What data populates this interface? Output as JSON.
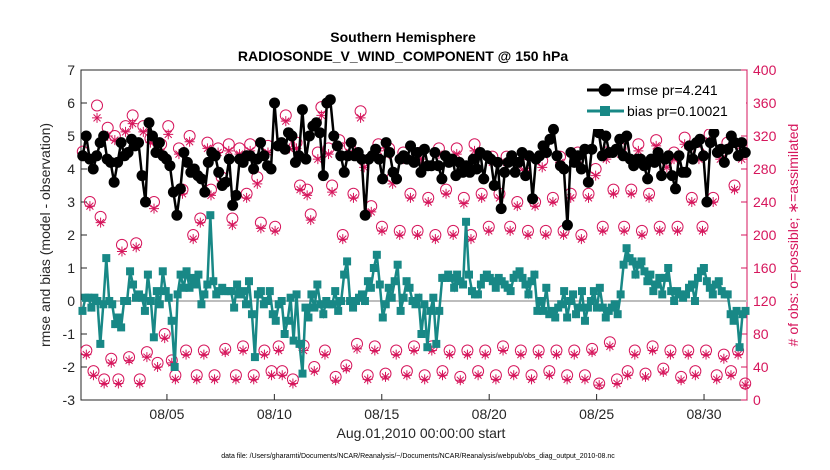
{
  "chart_data": {
    "type": "line",
    "title": "Southern Hemisphere",
    "subtitle": "RADIOSONDE_V_WIND_COMPONENT @ 150 hPa",
    "xlabel": "Aug.01,2010 00:00:00 start",
    "ylabel": "rmse and bias (model - observation)",
    "y2label": "# of obs: o=possible; ∗=assimilated",
    "footnote": "data file: /Users/gharamti/Documents/NCAR/Reanalysis/~/Documents/NCAR/Reanalysis/webpub/obs_diag_output_2010-08.nc",
    "xlim": [
      1,
      32
    ],
    "ylim": [
      -3,
      7
    ],
    "y2lim": [
      0,
      400
    ],
    "xticks": [
      5,
      10,
      15,
      20,
      25,
      30
    ],
    "xticklabels": [
      "08/05",
      "08/10",
      "08/15",
      "08/20",
      "08/25",
      "08/30"
    ],
    "yticks": [
      -3,
      -2,
      -1,
      0,
      1,
      2,
      3,
      4,
      5,
      6,
      7
    ],
    "y2ticks": [
      0,
      40,
      80,
      120,
      160,
      200,
      240,
      280,
      320,
      360,
      400
    ],
    "grid": false,
    "legend_position": "top-right",
    "series": [
      {
        "name": "rmse pr=4.241",
        "color": "#000000",
        "marker": "circle",
        "axis": "left",
        "y": [
          4.4,
          5.0,
          4.3,
          4.0,
          4.4,
          4.8,
          5.0,
          4.3,
          4.2,
          3.6,
          4.2,
          4.8,
          4.4,
          4.5,
          4.9,
          4.7,
          4.8,
          3.8,
          3.0,
          5.4,
          5.0,
          4.5,
          4.8,
          4.4,
          4.3,
          4.1,
          3.3,
          2.6,
          3.4,
          4.5,
          4.2,
          3.9,
          4.0,
          3.8,
          3.7,
          3.3,
          4.2,
          4.5,
          4.4,
          3.9,
          3.5,
          3.6,
          4.3,
          2.9,
          3.2,
          4.3,
          4.2,
          4.4,
          4.4,
          4.0,
          4.3,
          4.8,
          4.4,
          4.1,
          4.0,
          6.0,
          4.7,
          4.8,
          4.6,
          5.1,
          5.0,
          4.2,
          4.4,
          5.8,
          4.3,
          5.0,
          5.3,
          5.4,
          5.1,
          3.8,
          6.0,
          6.1,
          5.0,
          4.7,
          4.4,
          3.9,
          4.4,
          4.8,
          4.4,
          4.5,
          4.3,
          2.6,
          4.3,
          4.4,
          4.6,
          4.3,
          3.7,
          4.8,
          4.5,
          3.9,
          3.7,
          4.3,
          4.4,
          4.3,
          4.7,
          4.2,
          4.5,
          3.9,
          4.6,
          4.1,
          4.1,
          4.5,
          4.1,
          3.7,
          4.4,
          4.2,
          4.3,
          3.8,
          4.2,
          3.9,
          4.1,
          3.9,
          4.3,
          4.0,
          4.5,
          3.7,
          4.4,
          4.3,
          3.5,
          4.2,
          2.8,
          3.9,
          4.2,
          4.4,
          3.9,
          4.2,
          4.5,
          3.8,
          4.4,
          3.1,
          4.3,
          4.4,
          4.7,
          4.5,
          4.9,
          5.2,
          4.4,
          4.1,
          4.0,
          2.3,
          4.5,
          4.2,
          4.4,
          4.0,
          4.6,
          3.6,
          4.6,
          5.4,
          5.1,
          4.4,
          5.0,
          4.5,
          4.5,
          4.6,
          4.9,
          4.4,
          5.0,
          4.3,
          4.1,
          4.3,
          4.3,
          4.1,
          3.7,
          4.3,
          4.2,
          4.5,
          3.8,
          4.3,
          4.4,
          3.8,
          3.4,
          4.4,
          3.9,
          3.9,
          4.7,
          4.3,
          4.8,
          4.9,
          4.4,
          3.0,
          4.8,
          5.1,
          4.5,
          4.6,
          4.2,
          4.6,
          5.0,
          4.8,
          4.4,
          4.8,
          4.5
        ]
      },
      {
        "name": "bias pr=0.10021",
        "color": "#188886",
        "marker": "square",
        "axis": "left",
        "y": [
          -0.3,
          0.1,
          0.1,
          -0.2,
          0.1,
          0.0,
          -1.3,
          -0.1,
          1.3,
          0.0,
          -0.1,
          -0.7,
          -0.5,
          -0.8,
          0.0,
          0.0,
          0.9,
          0.5,
          0.1,
          0.2,
          0.1,
          -0.3,
          0.8,
          0.0,
          -1.1,
          0.3,
          -0.1,
          0.9,
          0.3,
          0.1,
          -0.6,
          -2.0,
          0.2,
          0.8,
          0.4,
          0.9,
          0.4,
          0.7,
          0.5,
          0.8,
          -0.1,
          0.2,
          0.5,
          2.6,
          0.6,
          0.2,
          0.3,
          0.4,
          0.3,
          0.3,
          0.3,
          -0.2,
          0.5,
          0.2,
          0.3,
          -0.1,
          0.6,
          -0.4,
          -1.7,
          0.2,
          0.3,
          -0.1,
          0.0,
          0.3,
          -0.4,
          -0.6,
          -0.1,
          0.0,
          -1.0,
          -0.6,
          0.1,
          -1.2,
          0.2,
          -1.3,
          -2.2,
          -0.2,
          -0.5,
          0.2,
          -0.2,
          0.5,
          -0.1,
          -0.4,
          0.0,
          -0.1,
          -0.1,
          0.3,
          -0.3,
          0.0,
          0.8,
          1.2,
          0.0,
          -0.2,
          0.0,
          0.1,
          0.2,
          0.0,
          0.6,
          0.4,
          1.0,
          1.4,
          0.5,
          -0.5,
          -0.1,
          0.4,
          0.1,
          0.6,
          1.1,
          -0.3,
          0.1,
          0.6,
          0.4,
          0.0,
          -0.1,
          0.1,
          -1.0,
          -0.1,
          -1.4,
          -0.3,
          0.1,
          -1.3,
          -0.3,
          0.7,
          0.7,
          0.8,
          0.7,
          0.4,
          0.8,
          0.6,
          0.5,
          2.4,
          0.8,
          0.3,
          0.2,
          0.2,
          0.5,
          0.7,
          0.8,
          0.7,
          0.6,
          0.4,
          0.7,
          0.6,
          0.5,
          0.4,
          0.3,
          0.7,
          0.8,
          0.9,
          0.7,
          0.5,
          0.2,
          0.6,
          0.8,
          -0.3,
          0.0,
          -0.3,
          0.4,
          -0.4,
          -0.3,
          -0.5,
          -0.2,
          -0.1,
          0.3,
          -0.5,
          0.0,
          0.2,
          -0.4,
          -0.2,
          0.3,
          -0.6,
          -0.2,
          0.0,
          0.3,
          -0.2,
          0.4,
          -0.2,
          -0.5,
          -0.3,
          -0.2,
          -0.1,
          -0.4,
          0.2,
          1.1,
          1.6,
          1.3,
          1.2,
          0.8,
          1.1,
          1.2,
          0.9,
          0.6,
          0.8,
          0.3,
          0.5,
          0.7,
          0.2,
          0.7,
          1.0,
          0.3,
          0.0,
          0.3,
          0.2,
          0.1,
          0.2,
          0.4,
          0.5,
          0.0,
          0.7,
          0.9,
          1.0,
          0.6,
          0.4,
          0.2,
          0.5,
          0.6,
          0.3,
          0.2,
          0.2,
          -0.4,
          -0.6,
          -0.3,
          -1.4,
          -0.4,
          -0.3
        ]
      },
      {
        "name": "# of obs possible",
        "color": "#d6165c",
        "marker": "circle-open",
        "axis": "right",
        "y": [
          301,
          60,
          240,
          35,
          357,
          222,
          25,
          330,
          50,
          320,
          25,
          188,
          332,
          52,
          345,
          190,
          25,
          332,
          58,
          317,
          240,
          45,
          310,
          80,
          332,
          48,
          30,
          305,
          255,
          60,
          320,
          200,
          30,
          220,
          60,
          312,
          255,
          30,
          305,
          270,
          62,
          310,
          220,
          30,
          305,
          65,
          250,
          310,
          30,
          270,
          215,
          60,
          308,
          35,
          210,
          65,
          35,
          345,
          310,
          25,
          312,
          260,
          66,
          255,
          225,
          40,
          300,
          355,
          60,
          305,
          260,
          28,
          315,
          200,
          42,
          308,
          250,
          68,
          350,
          290,
          30,
          235,
          65,
          310,
          210,
          32,
          305,
          270,
          60,
          205,
          300,
          35,
          250,
          65,
          205,
          300,
          30,
          245,
          65,
          200,
          305,
          35,
          255,
          60,
          205,
          305,
          28,
          245,
          60,
          200,
          310,
          35,
          250,
          60,
          210,
          295,
          30,
          250,
          65,
          295,
          210,
          35,
          240,
          60,
          285,
          205,
          30,
          240,
          60,
          290,
          205,
          35,
          245,
          60,
          295,
          205,
          30,
          250,
          60,
          300,
          200,
          30,
          250,
          62,
          280,
          20,
          210,
          300,
          70,
          255,
          25,
          305,
          210,
          35,
          255,
          60,
          310,
          205,
          32,
          250,
          65,
          315,
          210,
          38,
          290,
          60,
          300,
          210,
          28,
          318,
          60,
          245,
          35,
          300,
          210,
          60,
          322,
          245,
          30,
          300,
          55,
          312,
          35,
          260,
          60,
          300,
          20
        ]
      },
      {
        "name": "# of obs assimilated",
        "color": "#d6165c",
        "marker": "asterisk",
        "axis": "right",
        "y": [
          296,
          55,
          235,
          30,
          342,
          215,
          20,
          320,
          45,
          315,
          20,
          180,
          325,
          48,
          335,
          185,
          20,
          325,
          52,
          312,
          232,
          40,
          300,
          75,
          322,
          45,
          25,
          298,
          250,
          55,
          313,
          195,
          25,
          215,
          55,
          305,
          248,
          25,
          300,
          262,
          58,
          302,
          212,
          25,
          298,
          60,
          245,
          302,
          25,
          262,
          208,
          55,
          300,
          30,
          205,
          60,
          30,
          338,
          305,
          20,
          305,
          255,
          60,
          248,
          218,
          35,
          292,
          345,
          55,
          298,
          252,
          24,
          308,
          195,
          38,
          300,
          245,
          62,
          342,
          282,
          25,
          228,
          60,
          302,
          205,
          28,
          298,
          262,
          55,
          200,
          292,
          30,
          245,
          60,
          200,
          292,
          25,
          240,
          60,
          195,
          298,
          30,
          250,
          55,
          200,
          298,
          24,
          238,
          55,
          195,
          302,
          30,
          245,
          55,
          205,
          288,
          25,
          245,
          60,
          288,
          205,
          30,
          235,
          55,
          278,
          200,
          25,
          235,
          55,
          282,
          200,
          30,
          240,
          55,
          288,
          200,
          25,
          245,
          55,
          292,
          195,
          25,
          245,
          58,
          272,
          18,
          205,
          292,
          65,
          250,
          20,
          298,
          205,
          30,
          250,
          55,
          302,
          200,
          28,
          245,
          60,
          308,
          205,
          34,
          282,
          55,
          292,
          205,
          24,
          310,
          55,
          240,
          30,
          292,
          205,
          55,
          314,
          240,
          25,
          292,
          50,
          305,
          30,
          255,
          55,
          292,
          18
        ]
      }
    ]
  }
}
